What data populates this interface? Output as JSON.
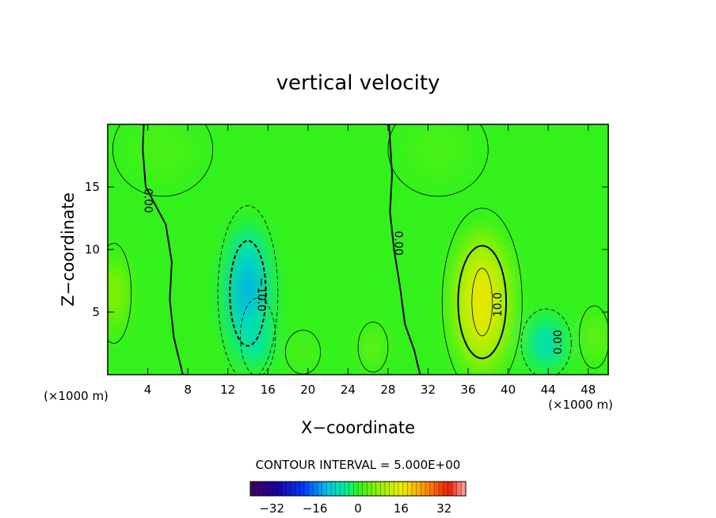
{
  "chart_data": {
    "type": "heatmap",
    "title": "vertical velocity",
    "xlabel": "X−coordinate",
    "ylabel": "Z−coordinate",
    "x_unit_left": "(×1000 m)",
    "x_unit_right": "(×1000 m)",
    "xlim": [
      0,
      50
    ],
    "ylim": [
      0,
      20
    ],
    "x_ticks": [
      4,
      8,
      12,
      16,
      20,
      24,
      28,
      32,
      36,
      40,
      44,
      48
    ],
    "y_ticks": [
      5,
      10,
      15
    ],
    "contour_interval_text": "CONTOUR INTERVAL = 5.000E+00",
    "contour_labels": [
      {
        "text": "0.00",
        "x": 4.0,
        "y": 13.9,
        "angle": 90
      },
      {
        "text": "0.00",
        "x": 29.0,
        "y": 10.5,
        "angle": 90
      },
      {
        "text": "−10.0",
        "x": 15.3,
        "y": 6.4,
        "angle": 90
      },
      {
        "text": "10.0",
        "x": 39.0,
        "y": 5.6,
        "angle": -90
      },
      {
        "text": "0.00",
        "x": 45.0,
        "y": 2.6,
        "angle": -90
      }
    ],
    "anomalies": [
      {
        "x": 37.4,
        "z": 5.8,
        "value": 17,
        "rx": 3.2,
        "rz": 6.0
      },
      {
        "x": 14.0,
        "z": 6.5,
        "value": -13,
        "rx": 2.4,
        "rz": 5.6
      },
      {
        "x": 15.0,
        "z": 3.0,
        "value": -9,
        "rx": 1.4,
        "rz": 2.5
      },
      {
        "x": 43.8,
        "z": 2.5,
        "value": -9,
        "rx": 2.0,
        "rz": 2.2
      },
      {
        "x": 0.6,
        "z": 6.5,
        "value": 9,
        "rx": 1.4,
        "rz": 3.2
      },
      {
        "x": 26.5,
        "z": 2.2,
        "value": 6,
        "rx": 1.2,
        "rz": 1.6
      },
      {
        "x": 48.6,
        "z": 3.0,
        "value": 6,
        "rx": 1.2,
        "rz": 2.0
      },
      {
        "x": 19.5,
        "z": 1.8,
        "value": 3,
        "rx": 1.4,
        "rz": 1.4
      },
      {
        "x": 5.5,
        "z": 18.0,
        "value": 2,
        "rx": 4.0,
        "rz": 3.0
      },
      {
        "x": 33.0,
        "z": 18.0,
        "value": 2,
        "rx": 4.0,
        "rz": 3.0
      }
    ],
    "colorbar": {
      "ticks": [
        "−32",
        "−16",
        "0",
        "16",
        "32"
      ],
      "tick_values": [
        -32,
        -16,
        0,
        16,
        32
      ],
      "range": [
        -40,
        40
      ]
    }
  }
}
